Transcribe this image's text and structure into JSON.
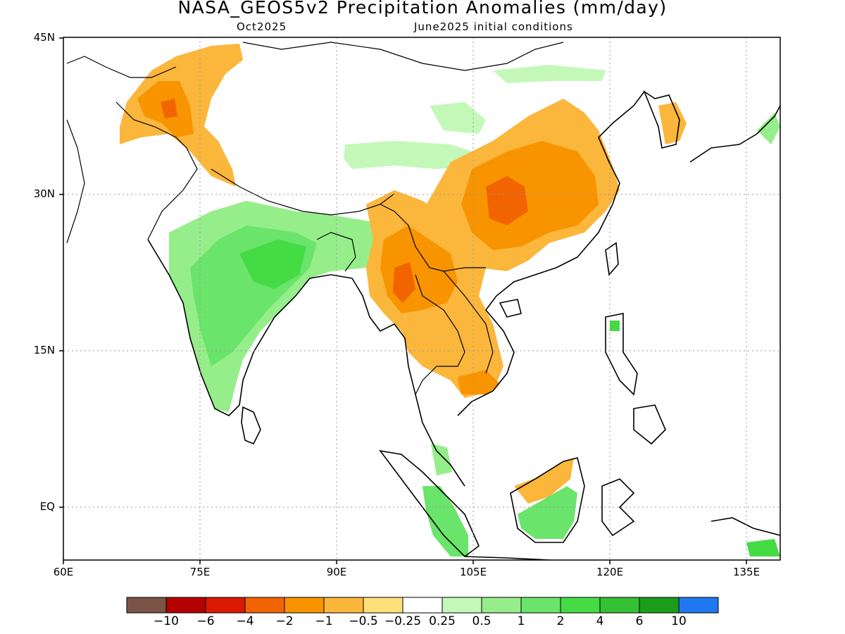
{
  "title": "NASA_GEOS5v2 Precipitation Anomalies (mm/day)",
  "subtitle_left": "Oct2025",
  "subtitle_right": "June2025 initial conditions",
  "axes": {
    "lat_ticks": [
      "45N",
      "30N",
      "15N",
      "EQ"
    ],
    "lon_ticks": [
      "60E",
      "75E",
      "90E",
      "105E",
      "120E",
      "135E"
    ]
  },
  "colorbar": {
    "colors": [
      "#7b5447",
      "#b30000",
      "#d91a00",
      "#f26400",
      "#f79400",
      "#fbb63c",
      "#fde07a",
      "#ffffff",
      "#c3f8b9",
      "#96ee8a",
      "#6ae46a",
      "#45db45",
      "#34c034",
      "#1a9e1a",
      "#1f78f0"
    ],
    "labels": [
      "-10",
      "-6",
      "-4",
      "-2",
      "-1",
      "-0.5",
      "-0.25",
      "0.25",
      "0.5",
      "1",
      "2",
      "4",
      "6",
      "10"
    ]
  },
  "anomaly_regions": [
    {
      "name": "Central & South China",
      "level": "-2 to -4",
      "color": "#f26400"
    },
    {
      "name": "Myanmar/Thailand",
      "level": "-1 to -4",
      "color": "#f79400"
    },
    {
      "name": "Pakistan/Kashmir",
      "level": "-0.25 to -1",
      "color": "#fbb63c"
    },
    {
      "name": "Central India",
      "level": "1 to 4",
      "color": "#45db45"
    },
    {
      "name": "Tibet plateau",
      "level": "0.25 to 0.5",
      "color": "#c3f8b9"
    },
    {
      "name": "Borneo",
      "level": "1 to 2",
      "color": "#6ae46a"
    },
    {
      "name": "Sumatra",
      "level": "1 to 2",
      "color": "#6ae46a"
    }
  ]
}
